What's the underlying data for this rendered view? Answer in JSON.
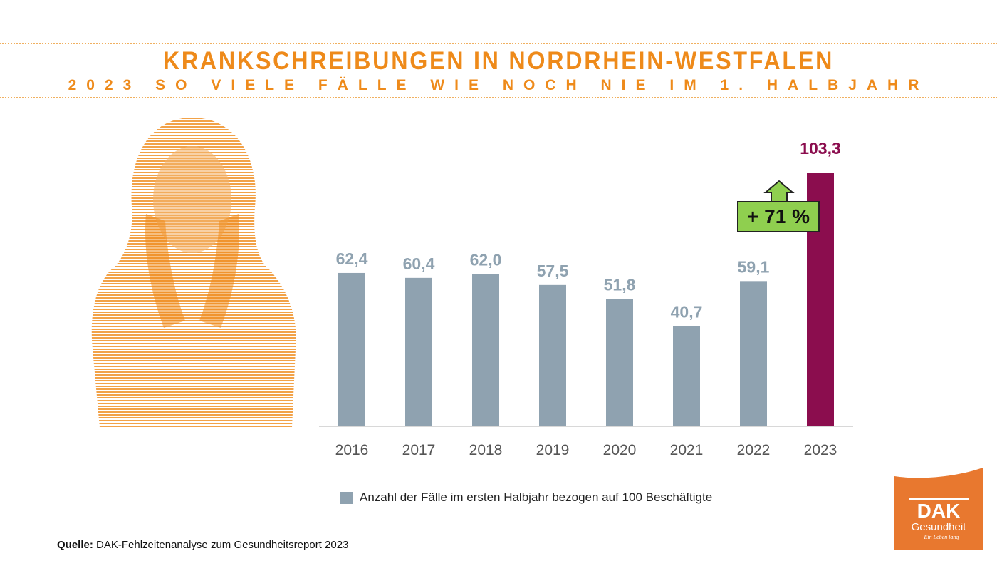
{
  "header": {
    "title": "KRANKSCHREIBUNGEN IN NORDRHEIN-WESTFALEN",
    "subtitle": "2023 SO VIELE FÄLLE WIE NOCH NIE IM 1. HALBJAHR"
  },
  "chart_data": {
    "type": "bar",
    "categories": [
      "2016",
      "2017",
      "2018",
      "2019",
      "2020",
      "2021",
      "2022",
      "2023"
    ],
    "series": [
      {
        "name": "Anzahl der Fälle im ersten Halbjahr bezogen auf 100 Beschäftigte",
        "values": [
          62.4,
          60.4,
          62.0,
          57.5,
          51.8,
          40.7,
          59.1,
          103.3
        ]
      }
    ],
    "data_labels": [
      "62,4",
      "60,4",
      "62,0",
      "57,5",
      "51,8",
      "40,7",
      "59,1",
      "103,3"
    ],
    "colors": {
      "default": "#8fa2b0",
      "highlight": "#8b0d4e",
      "label_default": "#8fa2b0"
    },
    "highlight_index": 7,
    "annotation": "+ 71 %",
    "annotation_color": "#8fcf4f",
    "ylim": [
      0,
      103.3
    ],
    "grid": false,
    "legend_position": "bottom"
  },
  "legend": {
    "label": "Anzahl der Fälle im ersten Halbjahr bezogen auf 100 Beschäftigte"
  },
  "source": {
    "label": "Quelle:",
    "text": " DAK-Fehlzeitenanalyse zum Gesundheitsreport 2023"
  },
  "logo": {
    "name": "DAK",
    "sub": "Gesundheit",
    "tagline": "Ein Leben lang",
    "color": "#e8782f"
  },
  "illustration": {
    "color": "#ee8a1a"
  }
}
